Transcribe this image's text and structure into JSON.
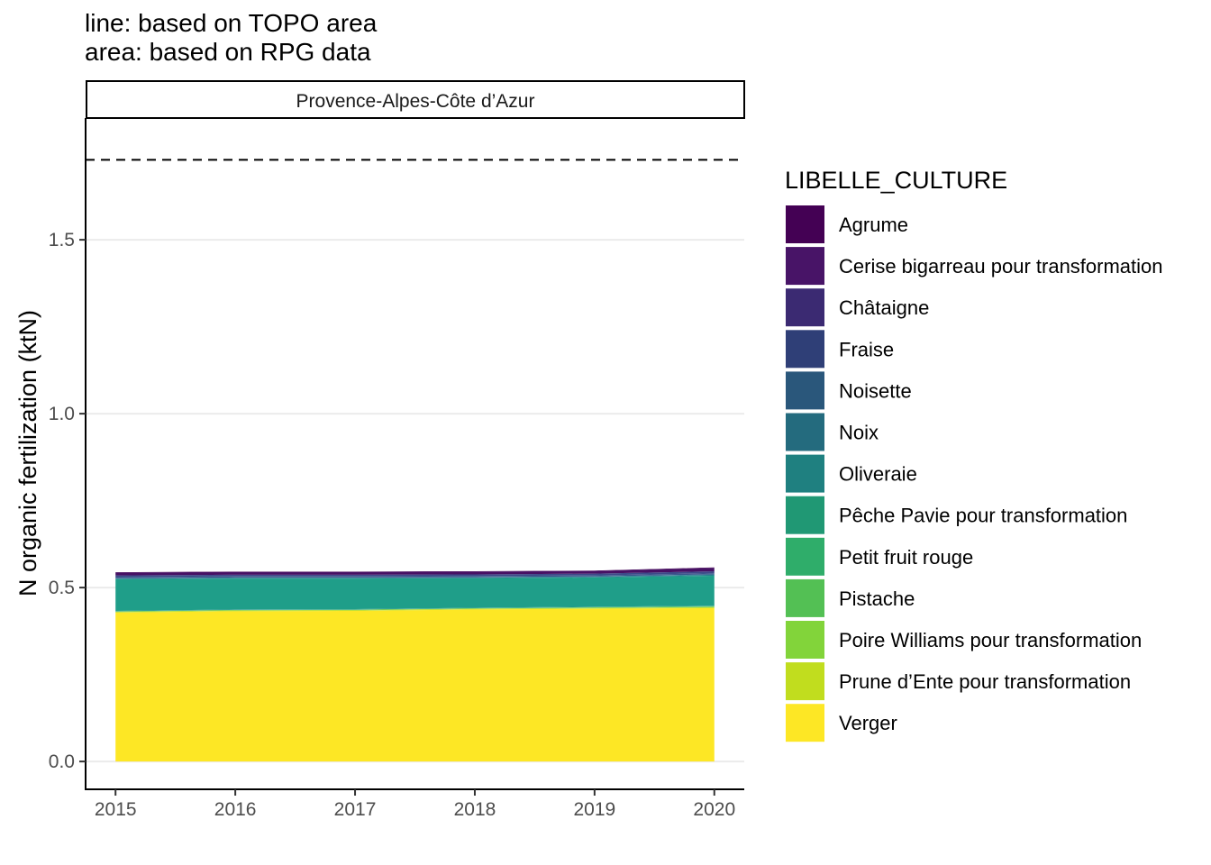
{
  "chart_data": {
    "type": "area",
    "title_lines": [
      "line: based on TOPO area",
      "area: based on RPG data"
    ],
    "facet_label": "Provence-Alpes-Côte d’Azur",
    "xlabel": "",
    "ylabel": "N organic fertilization (ktN)",
    "x": [
      2015,
      2016,
      2017,
      2018,
      2019,
      2020
    ],
    "x_tick_labels": [
      "2015",
      "2016",
      "2017",
      "2018",
      "2019",
      "2020"
    ],
    "xlim": [
      2014.75,
      2020.25
    ],
    "ylim": [
      -0.08,
      1.85
    ],
    "y_ticks": [
      0.0,
      0.5,
      1.0,
      1.5
    ],
    "y_tick_labels": [
      "0.0",
      "0.5",
      "1.0",
      "1.5"
    ],
    "grid": "horizontal",
    "reference_line": {
      "value": 1.73,
      "style": "dashed"
    },
    "legend": {
      "title": "LIBELLE_CULTURE",
      "position": "right"
    },
    "stack_order_bottom_to_top": [
      "Verger",
      "Prune d’Ente pour transformation",
      "Poire Williams pour transformation",
      "Pistache",
      "Petit fruit rouge",
      "Pêche Pavie pour transformation",
      "Oliveraie",
      "Noix",
      "Noisette",
      "Fraise",
      "Châtaigne",
      "Cerise bigarreau pour transformation",
      "Agrume"
    ],
    "series": [
      {
        "name": "Agrume",
        "color": "#440154",
        "values": [
          0.001,
          0.001,
          0.001,
          0.001,
          0.001,
          0.001
        ]
      },
      {
        "name": "Cerise bigarreau pour transformation",
        "color": "#471164",
        "values": [
          0.008,
          0.008,
          0.008,
          0.008,
          0.008,
          0.01
        ]
      },
      {
        "name": "Châtaigne",
        "color": "#3E4A89",
        "values": [
          0.005,
          0.005,
          0.005,
          0.005,
          0.005,
          0.006
        ]
      },
      {
        "name": "Fraise",
        "color": "#38598C",
        "values": [
          0.003,
          0.003,
          0.003,
          0.003,
          0.003,
          0.003
        ]
      },
      {
        "name": "Noisette",
        "color": "#2B758E",
        "values": [
          0.001,
          0.001,
          0.001,
          0.001,
          0.001,
          0.001
        ]
      },
      {
        "name": "Noix",
        "color": "#26828E",
        "values": [
          0.002,
          0.002,
          0.002,
          0.002,
          0.002,
          0.003
        ]
      },
      {
        "name": "Oliveraie",
        "color": "#1F9E89",
        "values": [
          0.091,
          0.089,
          0.088,
          0.085,
          0.084,
          0.086
        ]
      },
      {
        "name": "Pêche Pavie pour transformation",
        "color": "#21918C",
        "values": [
          0.001,
          0.001,
          0.001,
          0.001,
          0.001,
          0.001
        ]
      },
      {
        "name": "Petit fruit rouge",
        "color": "#35B779",
        "values": [
          0.001,
          0.001,
          0.001,
          0.001,
          0.001,
          0.001
        ]
      },
      {
        "name": "Pistache",
        "color": "#6DCD59",
        "values": [
          0.0,
          0.0,
          0.0,
          0.0,
          0.001,
          0.002
        ]
      },
      {
        "name": "Poire Williams pour transformation",
        "color": "#B4DE2C",
        "values": [
          0.002,
          0.002,
          0.002,
          0.002,
          0.002,
          0.002
        ]
      },
      {
        "name": "Prune d’Ente pour transformation",
        "color": "#C2DF23",
        "values": [
          0.001,
          0.001,
          0.001,
          0.001,
          0.001,
          0.001
        ]
      },
      {
        "name": "Verger",
        "color": "#FDE725",
        "values": [
          0.428,
          0.432,
          0.433,
          0.437,
          0.439,
          0.441
        ]
      }
    ],
    "legend_entries": [
      {
        "name": "Agrume",
        "color": "#440154"
      },
      {
        "name": "Cerise bigarreau pour transformation",
        "color": "#481467"
      },
      {
        "name": "Châtaigne",
        "color": "#3B2A72"
      },
      {
        "name": "Fraise",
        "color": "#2F3F77"
      },
      {
        "name": "Noisette",
        "color": "#2A577B"
      },
      {
        "name": "Noix",
        "color": "#246B7E"
      },
      {
        "name": "Oliveraie",
        "color": "#1F8080"
      },
      {
        "name": "Pêche Pavie pour transformation",
        "color": "#209874"
      },
      {
        "name": "Petit fruit rouge",
        "color": "#2FAD6A"
      },
      {
        "name": "Pistache",
        "color": "#53C054"
      },
      {
        "name": "Poire Williams pour transformation",
        "color": "#82D43A"
      },
      {
        "name": "Prune d’Ente pour transformation",
        "color": "#C1DD1E"
      },
      {
        "name": "Verger",
        "color": "#FDE725"
      }
    ]
  }
}
